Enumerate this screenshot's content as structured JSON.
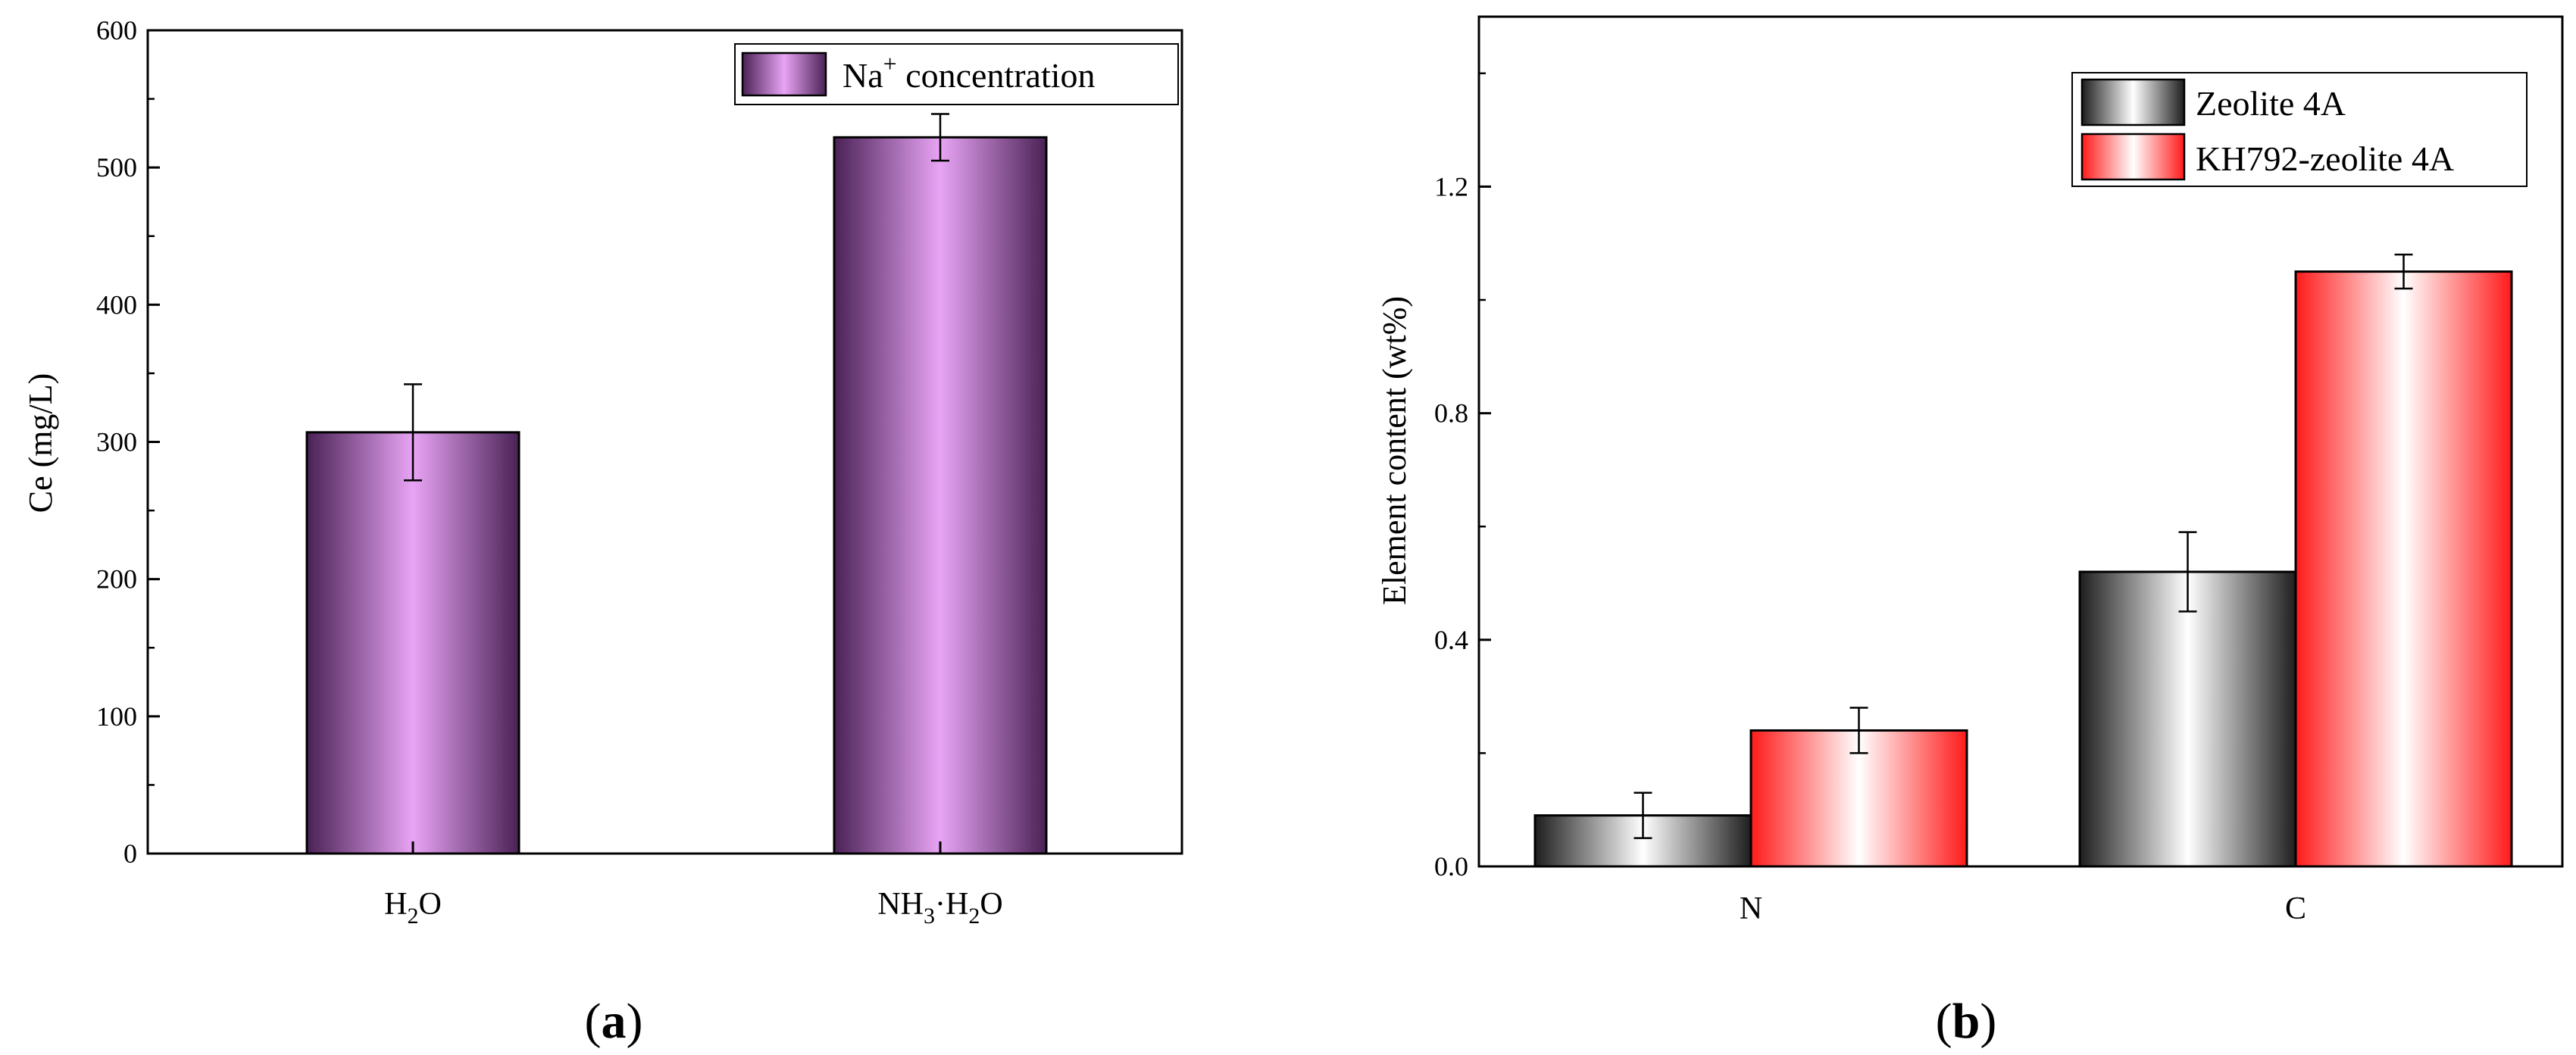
{
  "chart_data": [
    {
      "type": "bar",
      "panel": "a",
      "ylabel": "Ce (mg/L)",
      "xlabel": "",
      "ylim": [
        0,
        600
      ],
      "yticks": [
        0,
        100,
        200,
        300,
        400,
        500,
        600
      ],
      "categories": [
        {
          "base": "H",
          "sub": "2",
          "rest": "O"
        },
        {
          "base": "NH",
          "sub": "3",
          "rest": "·H",
          "sub2": "2",
          "rest2": "O"
        }
      ],
      "series": [
        {
          "name": "Na",
          "name_sup": "+",
          "name_rest": " concentration",
          "values": [
            307,
            522
          ],
          "errors": [
            35,
            17
          ],
          "color_dark": "#4a2255",
          "color_light": "#e8a4f5"
        }
      ],
      "legend_position": "top-right"
    },
    {
      "type": "bar",
      "panel": "b",
      "ylabel": "Element content (wt%)",
      "xlabel": "",
      "ylim": [
        0,
        1.5
      ],
      "yticks": [
        "0.0",
        "0.4",
        "0.8",
        "1.2"
      ],
      "ytick_values": [
        0,
        0.4,
        0.8,
        1.2
      ],
      "categories": [
        "N",
        "C"
      ],
      "series": [
        {
          "name": "Zeolite 4A",
          "values": [
            0.09,
            0.52
          ],
          "errors": [
            0.04,
            0.07
          ],
          "color_dark": "#1e1e1e",
          "color_light": "#ffffff"
        },
        {
          "name": "KH792-zeolite 4A",
          "values": [
            0.24,
            1.05
          ],
          "errors": [
            0.04,
            0.03
          ],
          "color_dark": "#ff1a1a",
          "color_light": "#ffffff"
        }
      ],
      "legend_position": "top-right"
    }
  ],
  "panel_labels": {
    "a": {
      "open": "(",
      "letter": "a",
      "close": ")"
    },
    "b": {
      "open": "(",
      "letter": "b",
      "close": ")"
    }
  }
}
